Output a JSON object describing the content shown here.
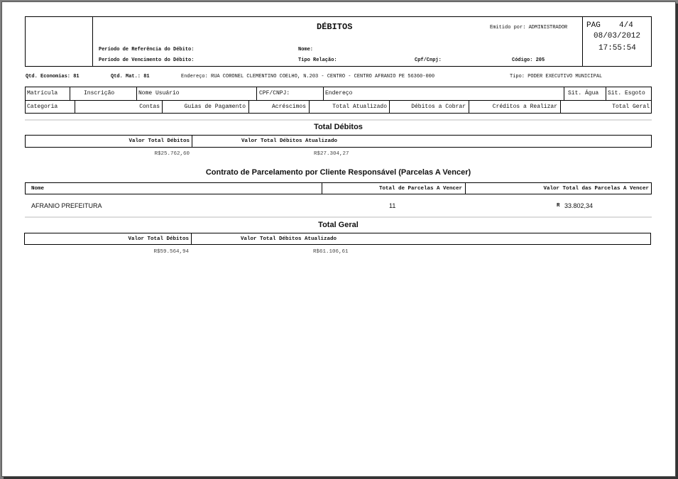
{
  "header": {
    "title": "DÉBITOS",
    "emitted_by": "Emitido por: ADMINISTRADOR",
    "page": "PAG",
    "page_number": "4/4",
    "date": "08/03/2012",
    "time": "17:55:54",
    "ref_period": "Período de Referência do Débito:",
    "due_period": "Período de Vencimento do Débito:",
    "name": "Nome:",
    "relation_type": "Tipo Relação:",
    "cpf_cnpj": "Cpf/Cnpj:",
    "code": "Código: 205"
  },
  "info": {
    "economias": "Qtd. Economias: 81",
    "mat": "Qtd. Mat.: 81",
    "address": "Endereço: RUA CORONEL CLEMENTINO COELHO, N.203 - CENTRO - CENTRO AFRANIO PE 56360-000",
    "tipo": "Tipo: PODER EXECUTIVO MUNICIPAL"
  },
  "grid": {
    "row1": [
      "Matrícula",
      "Inscrição",
      "Nome Usuário",
      "CPF/CNPJ:",
      "Endereço",
      "Sit. Água",
      "Sit. Esgoto"
    ],
    "row2": [
      "Categoria",
      "Contas",
      "Guias de Pagamento",
      "Acréscimos",
      "Total Atualizado",
      "Débitos a Cobrar",
      "Créditos a Realizar",
      "Total Geral"
    ]
  },
  "total_debitos": {
    "title": "Total Débitos",
    "col1": "Valor Total Débitos",
    "col2": "Valor Total Débitos Atualizado",
    "val1": "R$25.762,60",
    "val2": "R$27.304,27"
  },
  "contrato": {
    "title": "Contrato de Parcelamento por Cliente Responsável  (Parcelas A Vencer)",
    "headers": [
      "Nome",
      "Total de Parcelas A Vencer",
      "Valor Total das Parcelas A Vencer"
    ],
    "rows": [
      {
        "name": "AFRANIO PREFEITURA",
        "parcelas": "11",
        "currency": "R",
        "valor": "33.802,34"
      }
    ]
  },
  "total_geral": {
    "title": "Total Geral",
    "col1": "Valor Total Débitos",
    "col2": "Valor Total Débitos Atualizado",
    "val1": "R$59.564,94",
    "val2": "R$61.106,61"
  }
}
